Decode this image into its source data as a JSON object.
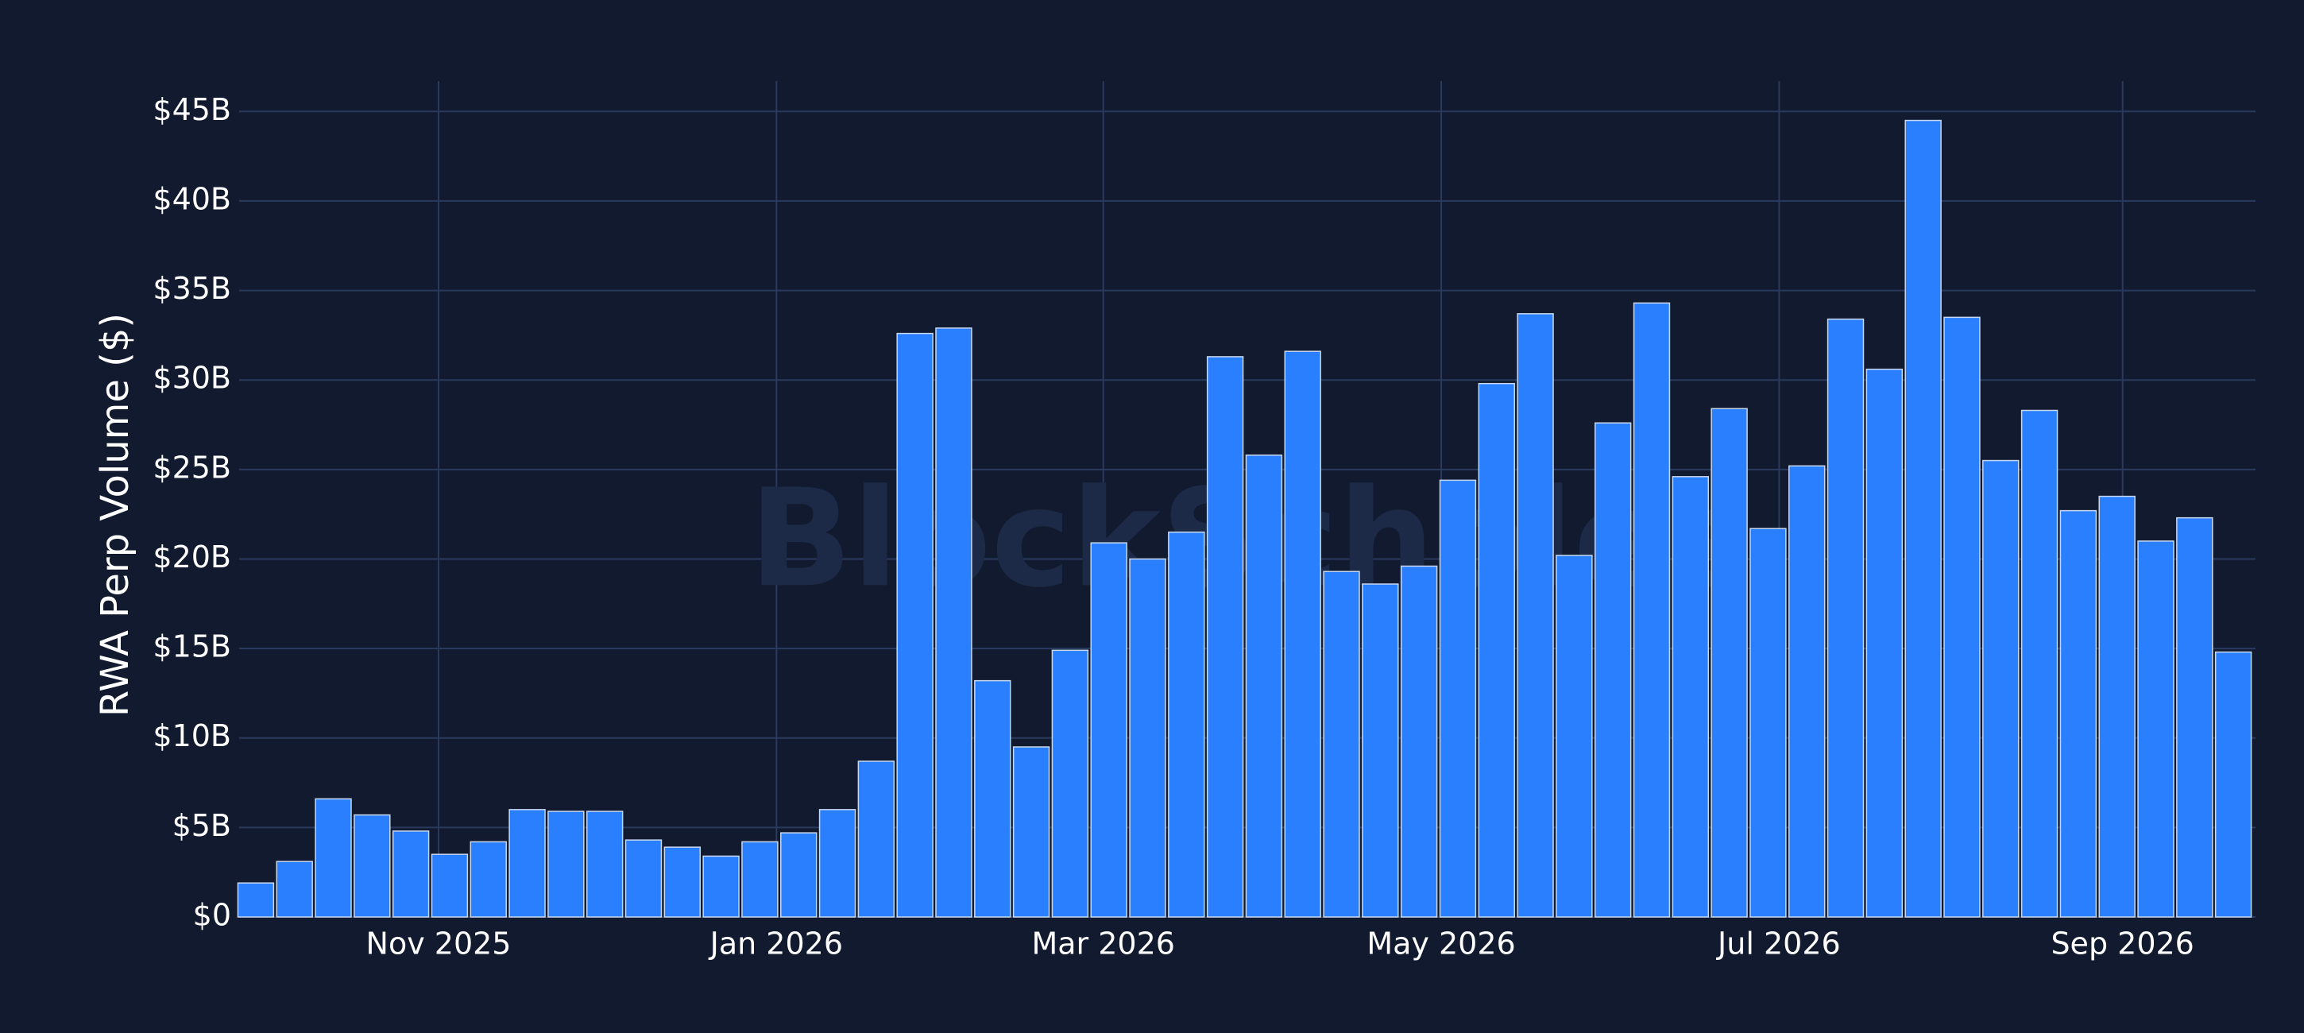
{
  "chart_data": {
    "type": "bar",
    "y_axis_label": "RWA Perp Volume ($)",
    "watermark": "BlockScholes",
    "x": [
      "2025-09-29",
      "2025-10-06",
      "2025-10-13",
      "2025-10-20",
      "2025-10-27",
      "2025-11-03",
      "2025-11-10",
      "2025-11-17",
      "2025-11-24",
      "2025-12-01",
      "2025-12-08",
      "2025-12-15",
      "2025-12-22",
      "2025-12-29",
      "2026-01-05",
      "2026-01-12",
      "2026-01-19",
      "2026-01-26",
      "2026-02-02",
      "2026-02-09",
      "2026-02-16",
      "2026-02-23",
      "2026-03-02",
      "2026-03-09",
      "2026-03-16",
      "2026-03-23",
      "2026-03-30",
      "2026-04-06",
      "2026-04-13",
      "2026-04-20",
      "2026-04-27",
      "2026-05-04",
      "2026-05-11",
      "2026-05-18",
      "2026-05-25",
      "2026-06-01",
      "2026-06-08",
      "2026-06-15",
      "2026-06-22",
      "2026-06-29",
      "2026-07-06",
      "2026-07-13",
      "2026-07-20",
      "2026-07-27",
      "2026-08-03",
      "2026-08-10",
      "2026-08-17",
      "2026-08-24",
      "2026-08-31",
      "2026-09-07",
      "2026-09-14",
      "2026-09-21"
    ],
    "values": [
      1.9,
      3.1,
      6.6,
      5.7,
      4.8,
      3.5,
      4.2,
      6.0,
      5.9,
      5.9,
      4.3,
      3.9,
      3.4,
      4.2,
      4.7,
      6.0,
      8.7,
      32.6,
      32.9,
      13.2,
      9.5,
      14.9,
      20.9,
      20.0,
      21.5,
      31.3,
      25.8,
      31.6,
      19.3,
      18.6,
      19.6,
      24.4,
      29.8,
      33.7,
      20.2,
      27.6,
      34.3,
      24.6,
      28.4,
      21.7,
      25.2,
      33.4,
      30.6,
      44.5,
      33.5,
      25.5,
      28.3,
      22.7,
      23.5,
      21.0,
      22.3,
      14.8
    ],
    "color": "#2a7fff",
    "xlim": [
      "2025-09-26",
      "2026-09-25"
    ],
    "xticks": [
      {
        "value": "2025-11-01",
        "label": "Nov 2025"
      },
      {
        "value": "2026-01-01",
        "label": "Jan 2026"
      },
      {
        "value": "2026-03-01",
        "label": "Mar 2026"
      },
      {
        "value": "2026-05-01",
        "label": "May 2026"
      },
      {
        "value": "2026-07-01",
        "label": "Jul 2026"
      },
      {
        "value": "2026-09-01",
        "label": "Sep 2026"
      }
    ],
    "ylim": [
      0,
      46.7
    ],
    "yticks": [
      {
        "value": 0,
        "label": "$0"
      },
      {
        "value": 5,
        "label": "$5B"
      },
      {
        "value": 10,
        "label": "$10B"
      },
      {
        "value": 15,
        "label": "$15B"
      },
      {
        "value": 20,
        "label": "$20B"
      },
      {
        "value": 25,
        "label": "$25B"
      },
      {
        "value": 30,
        "label": "$30B"
      },
      {
        "value": 35,
        "label": "$35B"
      },
      {
        "value": 40,
        "label": "$40B"
      },
      {
        "value": 45,
        "label": "$45B"
      }
    ],
    "grid": true
  }
}
